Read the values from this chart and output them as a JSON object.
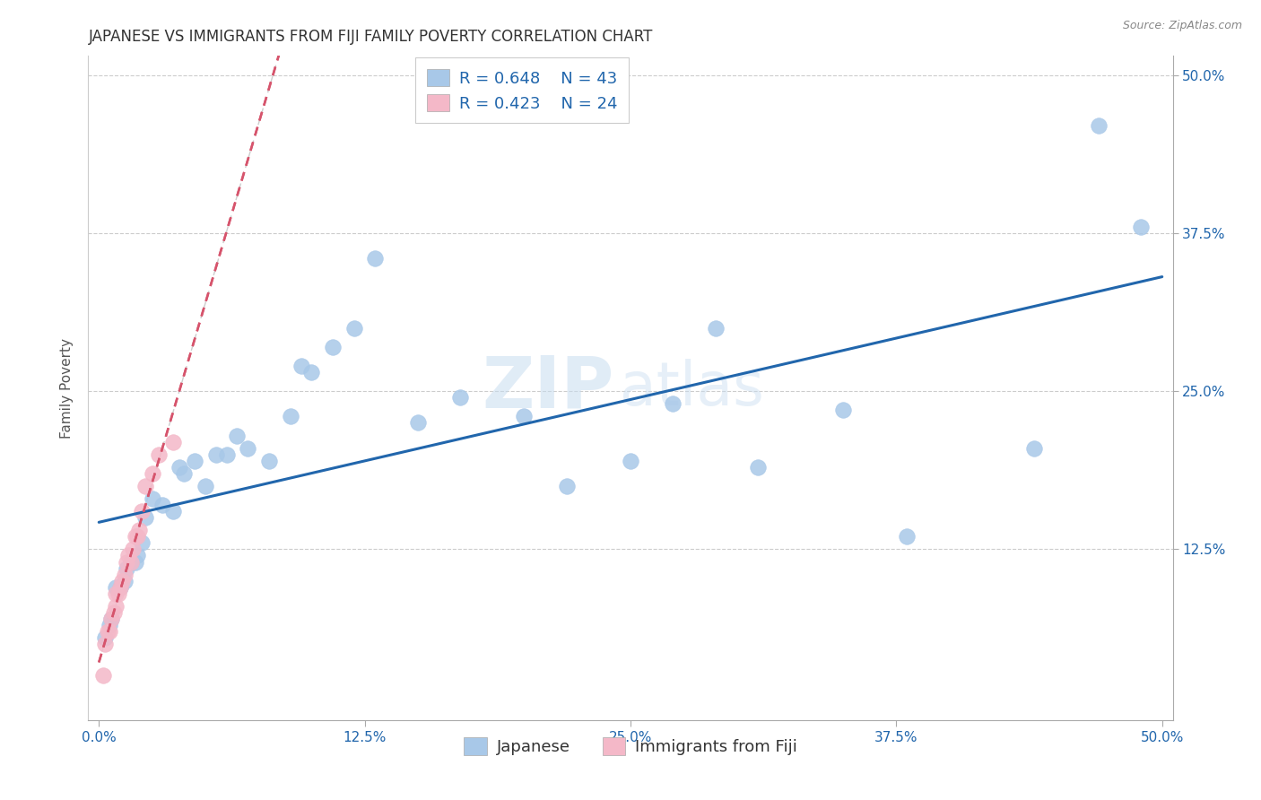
{
  "title": "JAPANESE VS IMMIGRANTS FROM FIJI FAMILY POVERTY CORRELATION CHART",
  "source": "Source: ZipAtlas.com",
  "ylabel": "Family Poverty",
  "xlim": [
    -0.005,
    0.505
  ],
  "ylim": [
    -0.01,
    0.515
  ],
  "xtick_labels": [
    "0.0%",
    "12.5%",
    "25.0%",
    "37.5%",
    "50.0%"
  ],
  "xtick_values": [
    0.0,
    0.125,
    0.25,
    0.375,
    0.5
  ],
  "ytick_labels": [
    "12.5%",
    "25.0%",
    "37.5%",
    "50.0%"
  ],
  "ytick_values": [
    0.125,
    0.25,
    0.375,
    0.5
  ],
  "grid_color": "#cccccc",
  "watermark_zip": "ZIP",
  "watermark_atlas": "atlas",
  "legend_r1": "R = 0.648",
  "legend_n1": "N = 43",
  "legend_r2": "R = 0.423",
  "legend_n2": "N = 24",
  "blue_color": "#a8c8e8",
  "pink_color": "#f4b8c8",
  "blue_line_color": "#2166ac",
  "pink_line_color": "#d6546c",
  "blue_label": "Japanese",
  "pink_label": "Immigrants from Fiji",
  "japanese_x": [
    0.003,
    0.005,
    0.006,
    0.008,
    0.01,
    0.012,
    0.013,
    0.015,
    0.017,
    0.018,
    0.02,
    0.022,
    0.025,
    0.03,
    0.035,
    0.038,
    0.04,
    0.045,
    0.05,
    0.055,
    0.06,
    0.065,
    0.07,
    0.08,
    0.09,
    0.095,
    0.1,
    0.11,
    0.12,
    0.13,
    0.15,
    0.17,
    0.2,
    0.22,
    0.25,
    0.27,
    0.29,
    0.31,
    0.35,
    0.38,
    0.44,
    0.47,
    0.49
  ],
  "japanese_y": [
    0.055,
    0.065,
    0.07,
    0.095,
    0.095,
    0.1,
    0.11,
    0.115,
    0.115,
    0.12,
    0.13,
    0.15,
    0.165,
    0.16,
    0.155,
    0.19,
    0.185,
    0.195,
    0.175,
    0.2,
    0.2,
    0.215,
    0.205,
    0.195,
    0.23,
    0.27,
    0.265,
    0.285,
    0.3,
    0.355,
    0.225,
    0.245,
    0.23,
    0.175,
    0.195,
    0.24,
    0.3,
    0.19,
    0.235,
    0.135,
    0.205,
    0.46,
    0.38
  ],
  "fiji_x": [
    0.002,
    0.003,
    0.004,
    0.005,
    0.006,
    0.007,
    0.008,
    0.008,
    0.009,
    0.01,
    0.011,
    0.012,
    0.013,
    0.014,
    0.015,
    0.016,
    0.017,
    0.018,
    0.019,
    0.02,
    0.022,
    0.025,
    0.028,
    0.035
  ],
  "fiji_y": [
    0.025,
    0.05,
    0.06,
    0.06,
    0.07,
    0.075,
    0.08,
    0.09,
    0.09,
    0.095,
    0.1,
    0.105,
    0.115,
    0.12,
    0.115,
    0.125,
    0.135,
    0.135,
    0.14,
    0.155,
    0.175,
    0.185,
    0.2,
    0.21
  ],
  "title_fontsize": 12,
  "axis_label_fontsize": 11,
  "tick_fontsize": 11,
  "legend_fontsize": 13
}
